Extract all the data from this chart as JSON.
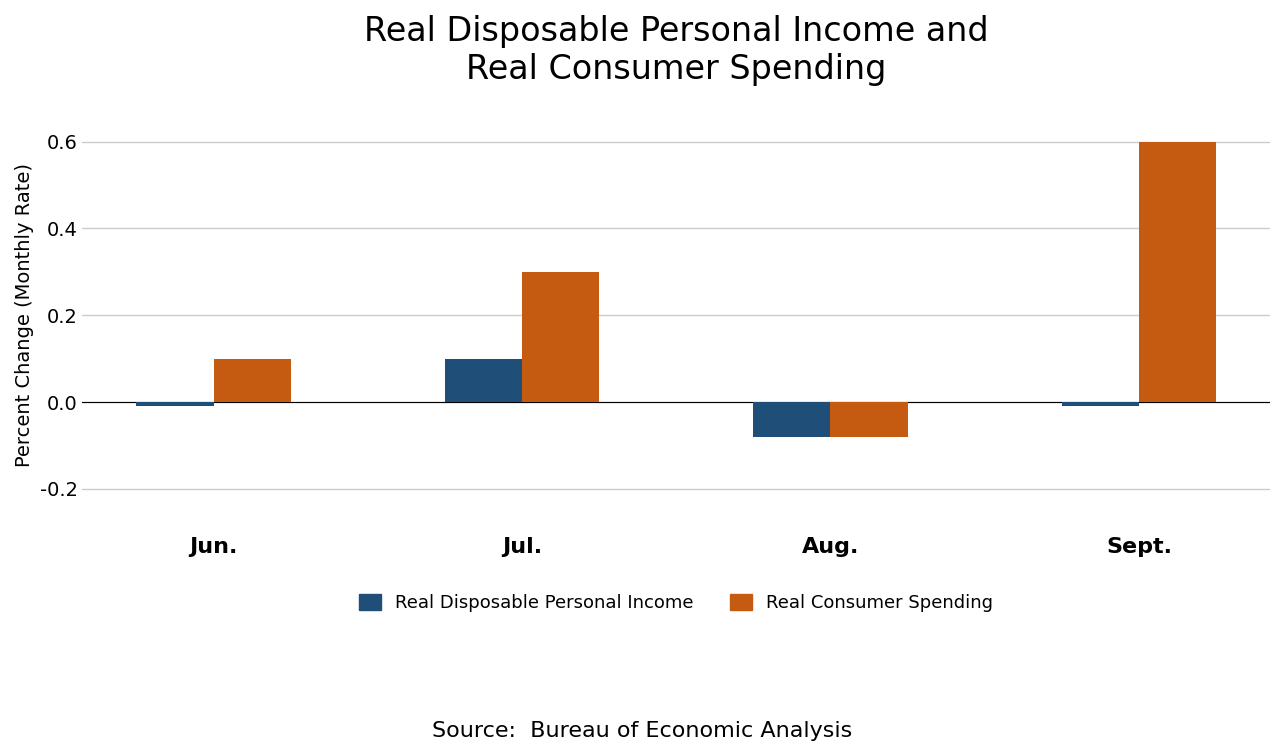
{
  "title": "Real Disposable Personal Income and\nReal Consumer Spending",
  "ylabel": "Percent Change (Monthly Rate)",
  "source_text": "Source:  Bureau of Economic Analysis",
  "categories": [
    "Jun.",
    "Jul.",
    "Aug.",
    "Sept."
  ],
  "income_values": [
    -0.01,
    0.1,
    -0.08,
    -0.01
  ],
  "spending_values": [
    0.1,
    0.3,
    -0.08,
    0.6
  ],
  "income_color": "#1F4E79",
  "spending_color": "#C55A11",
  "ylim": [
    -0.28,
    0.68
  ],
  "yticks": [
    -0.2,
    0.0,
    0.2,
    0.4,
    0.6
  ],
  "bar_width": 0.25,
  "legend_income": "Real Disposable Personal Income",
  "legend_spending": "Real Consumer Spending",
  "title_fontsize": 24,
  "label_fontsize": 14,
  "tick_fontsize": 14,
  "xtick_fontsize": 16,
  "legend_fontsize": 13,
  "source_fontsize": 16,
  "background_color": "#FFFFFF"
}
